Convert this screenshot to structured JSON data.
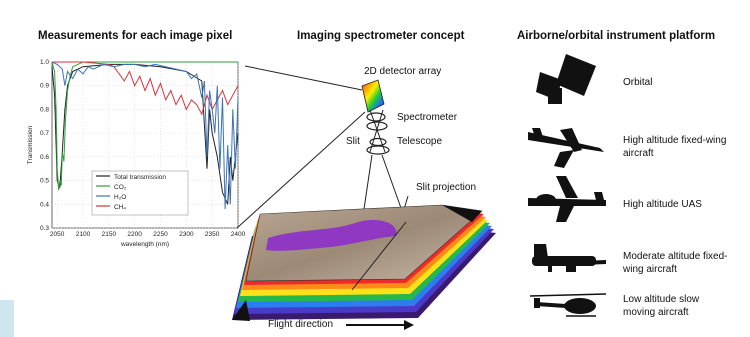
{
  "headings": {
    "left": "Measurements for each image pixel",
    "middle": "Imaging spectrometer concept",
    "right": "Airborne/orbital instrument platform"
  },
  "concept_labels": {
    "detector": "2D detector array",
    "spectrometer": "Spectrometer",
    "slit": "Slit",
    "telescope": "Telescope",
    "slit_projection": "Slit projection",
    "flight_direction": "Flight direction"
  },
  "platforms": [
    {
      "label": "Orbital",
      "icon": "satellite-icon"
    },
    {
      "label": "High altitude fixed-wing aircraft",
      "icon": "jet-aircraft-icon"
    },
    {
      "label": "High altitude UAS",
      "icon": "uas-drone-icon"
    },
    {
      "label": "Moderate altitude fixed-wing aircraft",
      "icon": "twin-prop-aircraft-icon"
    },
    {
      "label": "Low altitude slow moving aircraft",
      "icon": "helicopter-icon"
    }
  ],
  "chart_data": {
    "type": "line",
    "title": "",
    "xlabel": "wavelength (nm)",
    "ylabel": "Transmission",
    "xlim": [
      2040,
      2400
    ],
    "ylim": [
      0.3,
      1.0
    ],
    "xticks": [
      "2050",
      "2100",
      "2150",
      "2200",
      "2250",
      "2300",
      "2350",
      "2400"
    ],
    "yticks": [
      "0.3",
      "0.4",
      "0.5",
      "0.6",
      "0.7",
      "0.8",
      "0.9",
      "1.0"
    ],
    "grid": true,
    "legend": "lower-center",
    "series": [
      {
        "name": "Total transmission",
        "color": "#222222",
        "x": [
          2040,
          2045,
          2050,
          2055,
          2060,
          2065,
          2070,
          2080,
          2100,
          2150,
          2200,
          2250,
          2300,
          2330,
          2340,
          2345,
          2350,
          2360,
          2370,
          2380,
          2385,
          2390,
          2400
        ],
        "y": [
          0.98,
          0.86,
          0.5,
          0.47,
          0.62,
          0.8,
          0.9,
          0.96,
          0.98,
          0.99,
          0.99,
          0.98,
          0.96,
          0.92,
          0.55,
          0.8,
          0.7,
          0.6,
          0.45,
          0.4,
          0.6,
          0.5,
          0.7
        ]
      },
      {
        "name": "CO₂",
        "color": "#2e9e3e",
        "x": [
          2040,
          2045,
          2048,
          2050,
          2053,
          2055,
          2058,
          2060,
          2063,
          2066,
          2070,
          2075,
          2080,
          2090,
          2100,
          2400
        ],
        "y": [
          1.0,
          0.96,
          0.8,
          0.55,
          0.46,
          0.5,
          0.48,
          0.62,
          0.58,
          0.75,
          0.88,
          0.94,
          0.98,
          0.99,
          1.0,
          1.0
        ]
      },
      {
        "name": "H₂O",
        "color": "#3a73b8",
        "x": [
          2040,
          2050,
          2060,
          2065,
          2070,
          2080,
          2090,
          2100,
          2110,
          2120,
          2140,
          2160,
          2180,
          2200,
          2220,
          2240,
          2260,
          2280,
          2300,
          2310,
          2320,
          2330,
          2335,
          2340,
          2345,
          2350,
          2355,
          2360,
          2365,
          2370,
          2375,
          2380,
          2385,
          2390,
          2395,
          2400
        ],
        "y": [
          1.0,
          0.99,
          0.97,
          0.9,
          0.96,
          0.93,
          0.97,
          0.95,
          0.98,
          0.97,
          0.99,
          0.98,
          0.99,
          0.99,
          0.98,
          0.99,
          0.98,
          0.97,
          0.96,
          0.93,
          0.95,
          0.85,
          0.92,
          0.6,
          0.88,
          0.8,
          0.7,
          0.9,
          0.55,
          0.85,
          0.38,
          0.65,
          0.4,
          0.8,
          0.55,
          0.85
        ]
      },
      {
        "name": "CH₄",
        "color": "#d9333b",
        "x": [
          2040,
          2100,
          2150,
          2160,
          2170,
          2180,
          2190,
          2200,
          2210,
          2220,
          2230,
          2240,
          2250,
          2260,
          2270,
          2280,
          2290,
          2300,
          2310,
          2320,
          2330,
          2340,
          2350,
          2360,
          2370,
          2380,
          2390,
          2400
        ],
        "y": [
          1.0,
          1.0,
          0.99,
          0.98,
          0.95,
          0.92,
          0.96,
          0.9,
          0.94,
          0.88,
          0.93,
          0.86,
          0.91,
          0.84,
          0.88,
          0.82,
          0.86,
          0.8,
          0.84,
          0.82,
          0.78,
          0.86,
          0.8,
          0.84,
          0.88,
          0.82,
          0.86,
          0.9
        ]
      }
    ]
  }
}
